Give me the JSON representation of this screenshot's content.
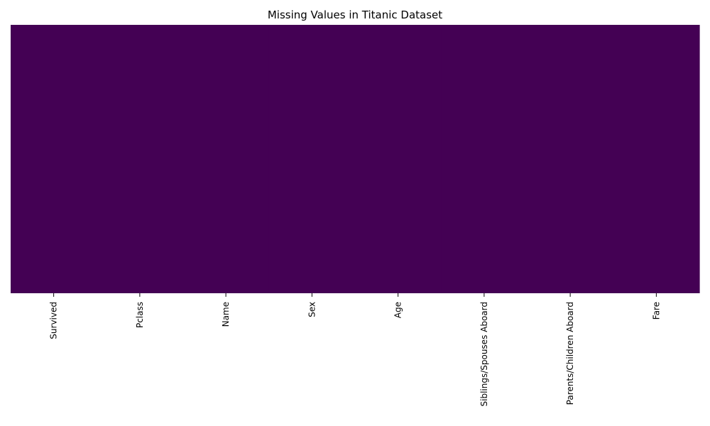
{
  "chart_data": {
    "type": "heatmap",
    "title": "Missing Values in Titanic Dataset",
    "columns": [
      "Survived",
      "Pclass",
      "Name",
      "Sex",
      "Age",
      "Siblings/Spouses Aboard",
      "Parents/Children Aboard",
      "Fare"
    ],
    "missing_flags": [
      false,
      false,
      false,
      false,
      false,
      false,
      false,
      false
    ],
    "colormap": "viridis",
    "colors": {
      "not_missing": "#440154",
      "missing": "#fde725"
    },
    "yticks_visible": false,
    "colorbar": false
  }
}
